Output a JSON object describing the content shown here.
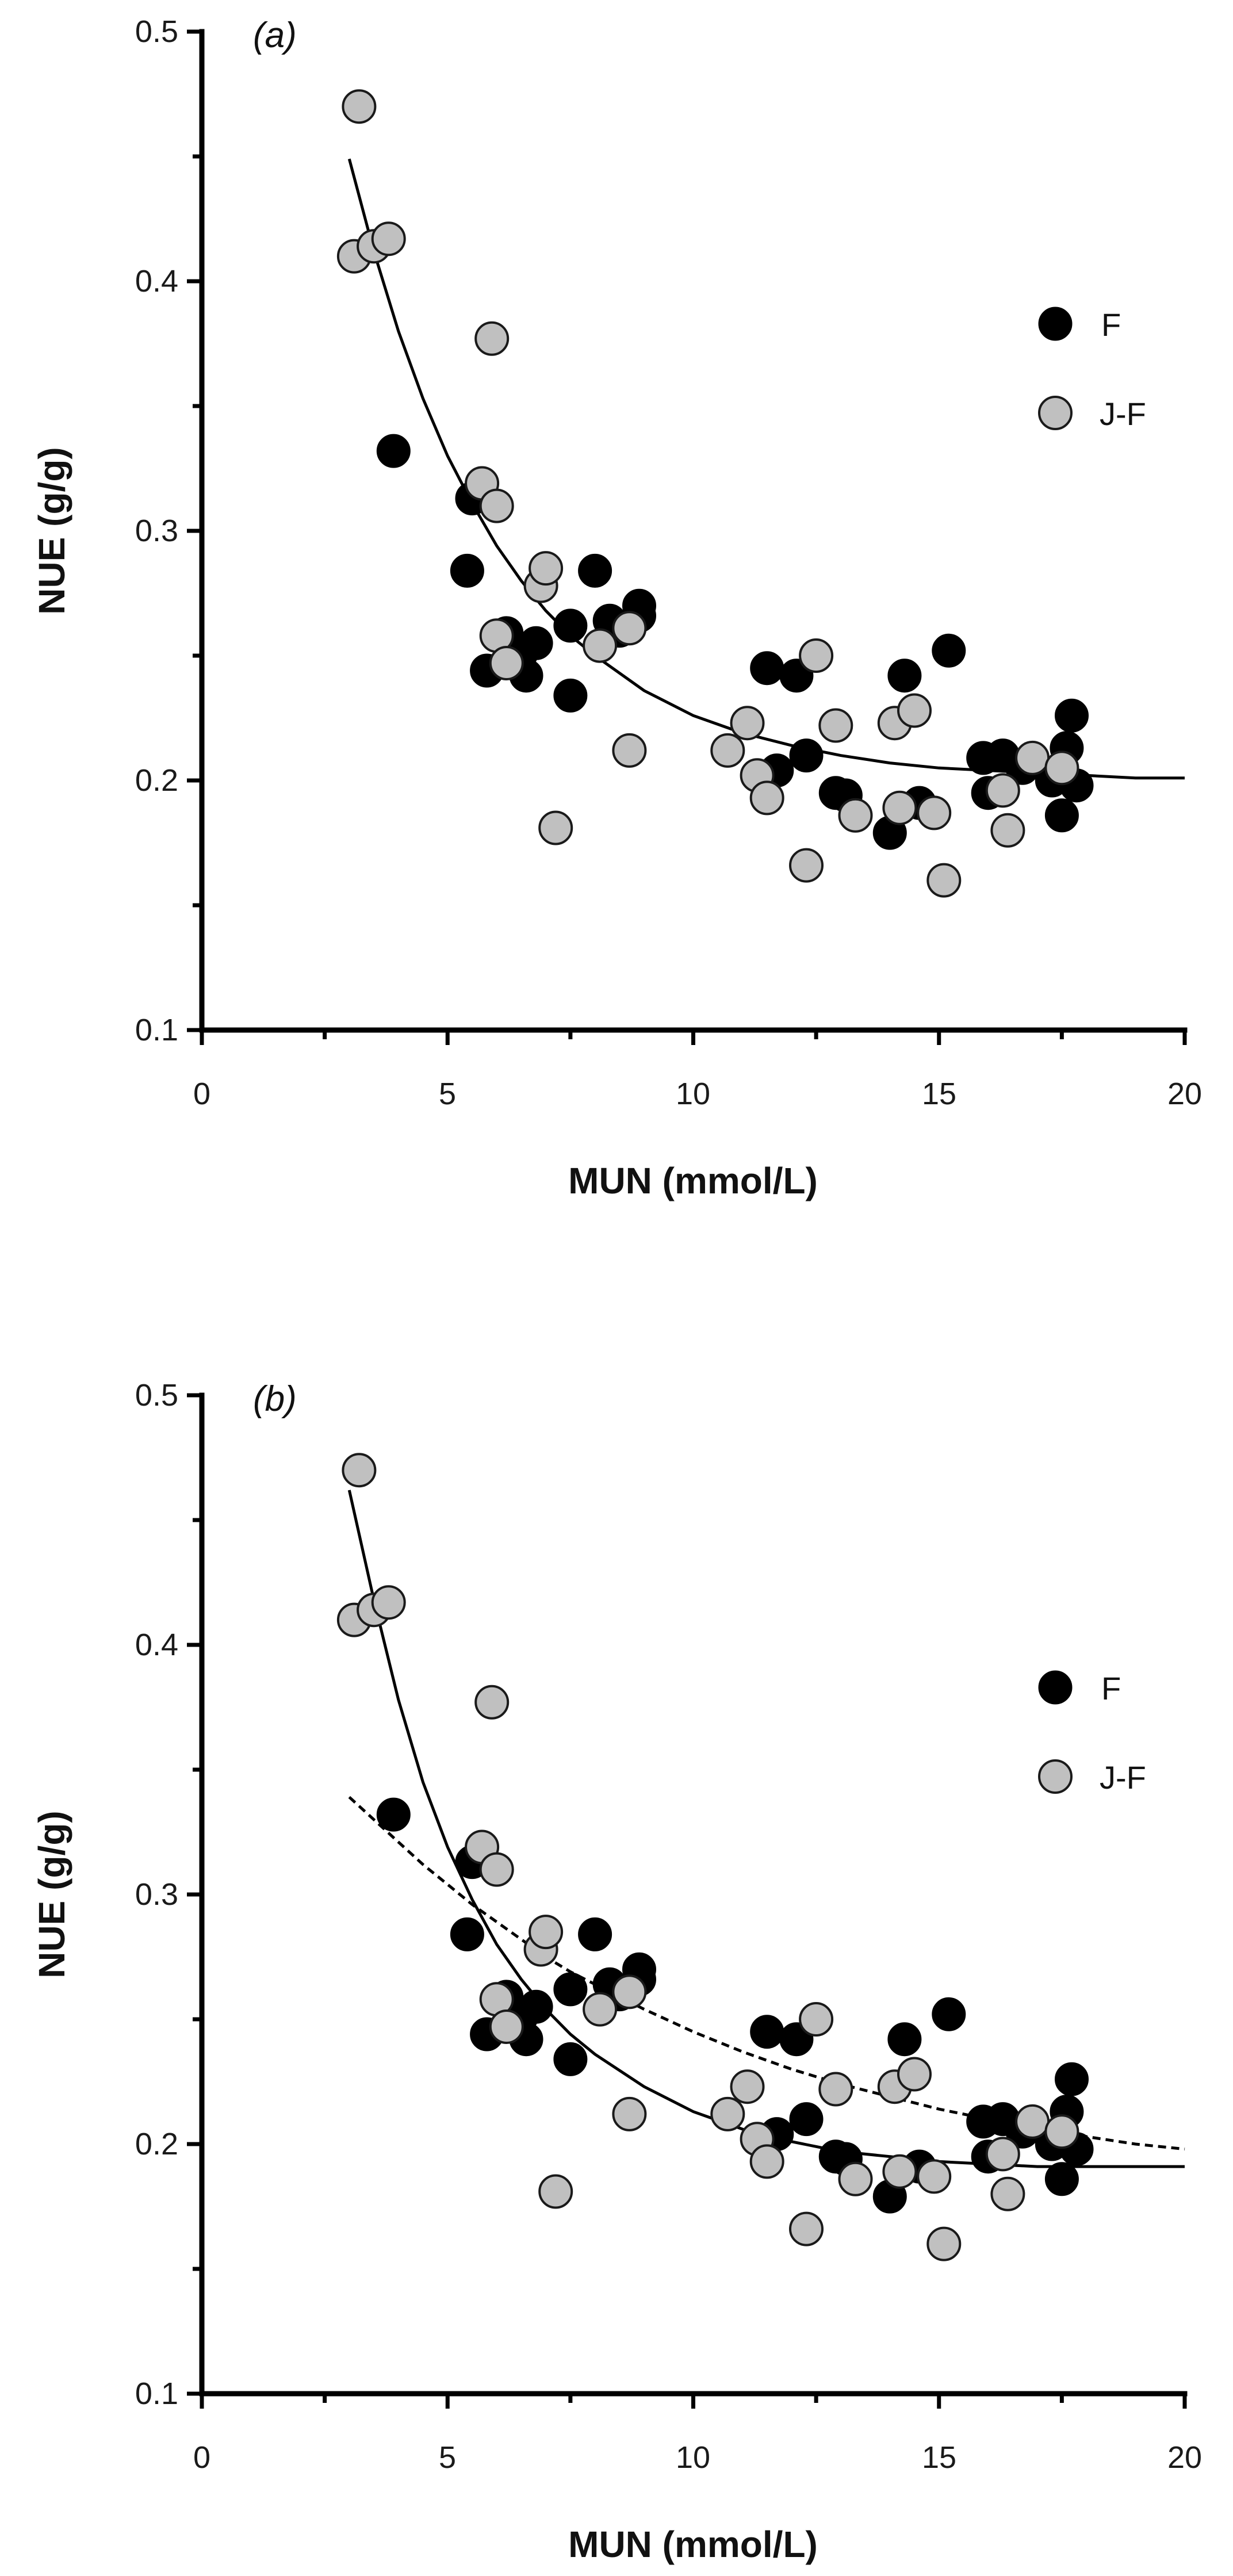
{
  "chart_data": [
    {
      "panel_label": "(a)",
      "type": "scatter",
      "xlabel": "MUN (mmol/L)",
      "ylabel": "NUE (g/g)",
      "xlim": [
        0,
        20
      ],
      "ylim": [
        0.1,
        0.5
      ],
      "xticks": [
        "0",
        "5",
        "10",
        "15",
        "20"
      ],
      "yticks": [
        "0.1",
        "0.2",
        "0.3",
        "0.4",
        "0.5"
      ],
      "legend": [
        "F",
        "J-F"
      ],
      "series": [
        {
          "name": "F",
          "color": "#000000",
          "x": [
            3.9,
            5.4,
            5.5,
            5.8,
            6.2,
            6.5,
            6.6,
            6.8,
            7.5,
            7.5,
            8.0,
            8.3,
            8.5,
            8.9,
            8.9,
            11.5,
            11.7,
            12.1,
            12.3,
            12.9,
            13.1,
            14.0,
            14.3,
            14.6,
            15.2,
            15.9,
            16.0,
            16.3,
            16.7,
            17.3,
            17.5,
            17.6,
            17.7,
            17.8
          ],
          "y": [
            0.332,
            0.284,
            0.313,
            0.244,
            0.259,
            0.251,
            0.242,
            0.255,
            0.262,
            0.234,
            0.284,
            0.264,
            0.26,
            0.27,
            0.266,
            0.245,
            0.204,
            0.242,
            0.21,
            0.195,
            0.194,
            0.179,
            0.242,
            0.191,
            0.252,
            0.209,
            0.195,
            0.21,
            0.205,
            0.2,
            0.186,
            0.213,
            0.226,
            0.198
          ]
        },
        {
          "name": "J-F",
          "color": "#c0c0c0",
          "x": [
            3.1,
            3.2,
            3.5,
            3.8,
            5.7,
            5.9,
            6.0,
            6.0,
            6.2,
            6.9,
            7.0,
            7.2,
            8.1,
            8.7,
            8.7,
            10.7,
            11.1,
            11.3,
            11.5,
            12.3,
            12.5,
            12.9,
            13.3,
            14.1,
            14.2,
            14.5,
            14.9,
            15.1,
            16.3,
            16.4,
            16.9,
            17.5
          ],
          "y": [
            0.41,
            0.47,
            0.414,
            0.417,
            0.319,
            0.377,
            0.258,
            0.31,
            0.247,
            0.278,
            0.285,
            0.181,
            0.254,
            0.261,
            0.212,
            0.212,
            0.223,
            0.202,
            0.193,
            0.166,
            0.25,
            0.222,
            0.186,
            0.223,
            0.189,
            0.228,
            0.187,
            0.16,
            0.196,
            0.18,
            0.209,
            0.205
          ]
        }
      ],
      "fit_lines": [
        {
          "style": "solid",
          "x": [
            3.0,
            3.5,
            4.0,
            4.5,
            5.0,
            5.5,
            6.0,
            6.5,
            7.0,
            7.5,
            8.0,
            9.0,
            10.0,
            11.0,
            12.0,
            13.0,
            14.0,
            15.0,
            16.0,
            17.0,
            18.0,
            19.0,
            20.0
          ],
          "y": [
            0.449,
            0.412,
            0.38,
            0.353,
            0.33,
            0.311,
            0.294,
            0.28,
            0.268,
            0.258,
            0.25,
            0.236,
            0.226,
            0.219,
            0.214,
            0.21,
            0.207,
            0.205,
            0.204,
            0.203,
            0.202,
            0.201,
            0.201
          ]
        }
      ]
    },
    {
      "panel_label": "(b)",
      "type": "scatter",
      "xlabel": "MUN (mmol/L)",
      "ylabel": "NUE (g/g)",
      "xlim": [
        0,
        20
      ],
      "ylim": [
        0.1,
        0.5
      ],
      "xticks": [
        "0",
        "5",
        "10",
        "15",
        "20"
      ],
      "yticks": [
        "0.1",
        "0.2",
        "0.3",
        "0.4",
        "0.5"
      ],
      "legend": [
        "F",
        "J-F"
      ],
      "series": [
        {
          "name": "F",
          "color": "#000000",
          "x": [
            3.9,
            5.4,
            5.5,
            5.8,
            6.2,
            6.5,
            6.6,
            6.8,
            7.5,
            7.5,
            8.0,
            8.3,
            8.5,
            8.9,
            8.9,
            11.5,
            11.7,
            12.1,
            12.3,
            12.9,
            13.1,
            14.0,
            14.3,
            14.6,
            15.2,
            15.9,
            16.0,
            16.3,
            16.7,
            17.3,
            17.5,
            17.6,
            17.7,
            17.8
          ],
          "y": [
            0.332,
            0.284,
            0.313,
            0.244,
            0.259,
            0.251,
            0.242,
            0.255,
            0.262,
            0.234,
            0.284,
            0.264,
            0.26,
            0.27,
            0.266,
            0.245,
            0.204,
            0.242,
            0.21,
            0.195,
            0.194,
            0.179,
            0.242,
            0.191,
            0.252,
            0.209,
            0.195,
            0.21,
            0.205,
            0.2,
            0.186,
            0.213,
            0.226,
            0.198
          ]
        },
        {
          "name": "J-F",
          "color": "#c0c0c0",
          "x": [
            3.1,
            3.2,
            3.5,
            3.8,
            5.7,
            5.9,
            6.0,
            6.0,
            6.2,
            6.9,
            7.0,
            7.2,
            8.1,
            8.7,
            8.7,
            10.7,
            11.1,
            11.3,
            11.5,
            12.3,
            12.5,
            12.9,
            13.3,
            14.1,
            14.2,
            14.5,
            14.9,
            15.1,
            16.3,
            16.4,
            16.9,
            17.5
          ],
          "y": [
            0.41,
            0.47,
            0.414,
            0.417,
            0.319,
            0.377,
            0.258,
            0.31,
            0.247,
            0.278,
            0.285,
            0.181,
            0.254,
            0.261,
            0.212,
            0.212,
            0.223,
            0.202,
            0.193,
            0.166,
            0.25,
            0.222,
            0.186,
            0.223,
            0.189,
            0.228,
            0.187,
            0.16,
            0.196,
            0.18,
            0.209,
            0.205
          ]
        }
      ],
      "fit_lines": [
        {
          "style": "solid",
          "x": [
            3.0,
            3.5,
            4.0,
            4.5,
            5.0,
            5.5,
            6.0,
            6.5,
            7.0,
            7.5,
            8.0,
            9.0,
            10.0,
            11.0,
            12.0,
            13.0,
            14.0,
            15.0,
            16.0,
            17.0,
            18.0,
            19.0,
            20.0
          ],
          "y": [
            0.462,
            0.418,
            0.378,
            0.345,
            0.319,
            0.298,
            0.28,
            0.266,
            0.254,
            0.244,
            0.236,
            0.223,
            0.213,
            0.206,
            0.201,
            0.197,
            0.195,
            0.193,
            0.192,
            0.191,
            0.191,
            0.191,
            0.191
          ]
        },
        {
          "style": "dashed",
          "x": [
            3.0,
            3.5,
            4.0,
            4.5,
            5.0,
            5.5,
            6.0,
            6.5,
            7.0,
            7.5,
            8.0,
            9.0,
            10.0,
            11.0,
            12.0,
            13.0,
            14.0,
            15.0,
            16.0,
            17.0,
            18.0,
            19.0,
            20.0
          ],
          "y": [
            0.339,
            0.33,
            0.321,
            0.312,
            0.304,
            0.296,
            0.289,
            0.282,
            0.275,
            0.269,
            0.264,
            0.254,
            0.245,
            0.237,
            0.23,
            0.224,
            0.219,
            0.214,
            0.21,
            0.206,
            0.203,
            0.2,
            0.198
          ]
        }
      ]
    }
  ]
}
